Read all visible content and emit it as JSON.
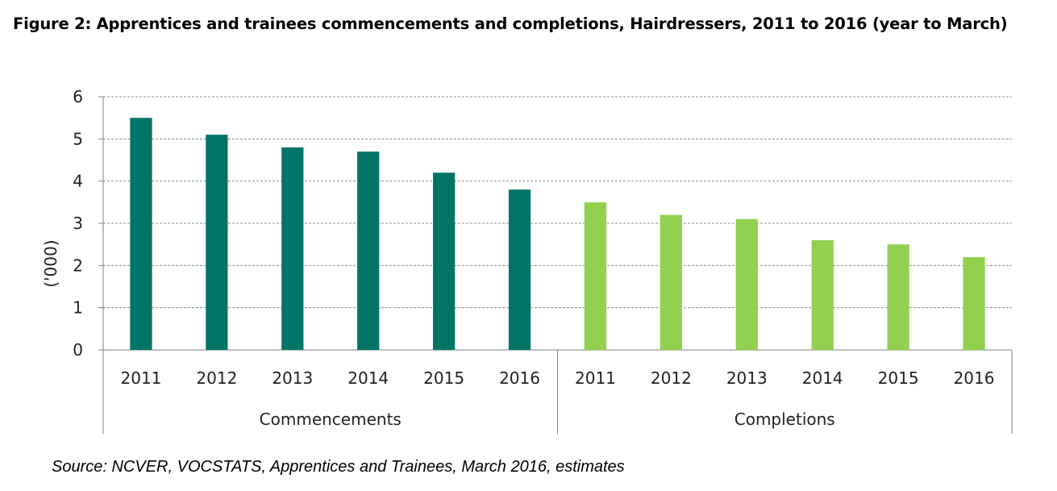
{
  "chart_data": {
    "type": "bar",
    "title": "Figure 2: Apprentices and trainees commencements and completions, Hairdressers, 2011 to 2016 (year to March)",
    "ylabel": "('000)",
    "xlabel": "",
    "ylim": [
      0,
      6
    ],
    "yticks": [
      "0",
      "1",
      "2",
      "3",
      "4",
      "5",
      "6"
    ],
    "grid": true,
    "legend": "none",
    "groups": [
      {
        "name": "Commencements",
        "color": "#007566",
        "categories": [
          "2011",
          "2012",
          "2013",
          "2014",
          "2015",
          "2016"
        ],
        "values": [
          5.5,
          5.1,
          4.8,
          4.7,
          4.2,
          3.8
        ]
      },
      {
        "name": "Completions",
        "color": "#92d050",
        "categories": [
          "2011",
          "2012",
          "2013",
          "2014",
          "2015",
          "2016"
        ],
        "values": [
          3.5,
          3.2,
          3.1,
          2.6,
          2.5,
          2.2
        ]
      }
    ]
  },
  "source": "Source: NCVER, VOCSTATS, Apprentices and Trainees, March 2016, estimates"
}
